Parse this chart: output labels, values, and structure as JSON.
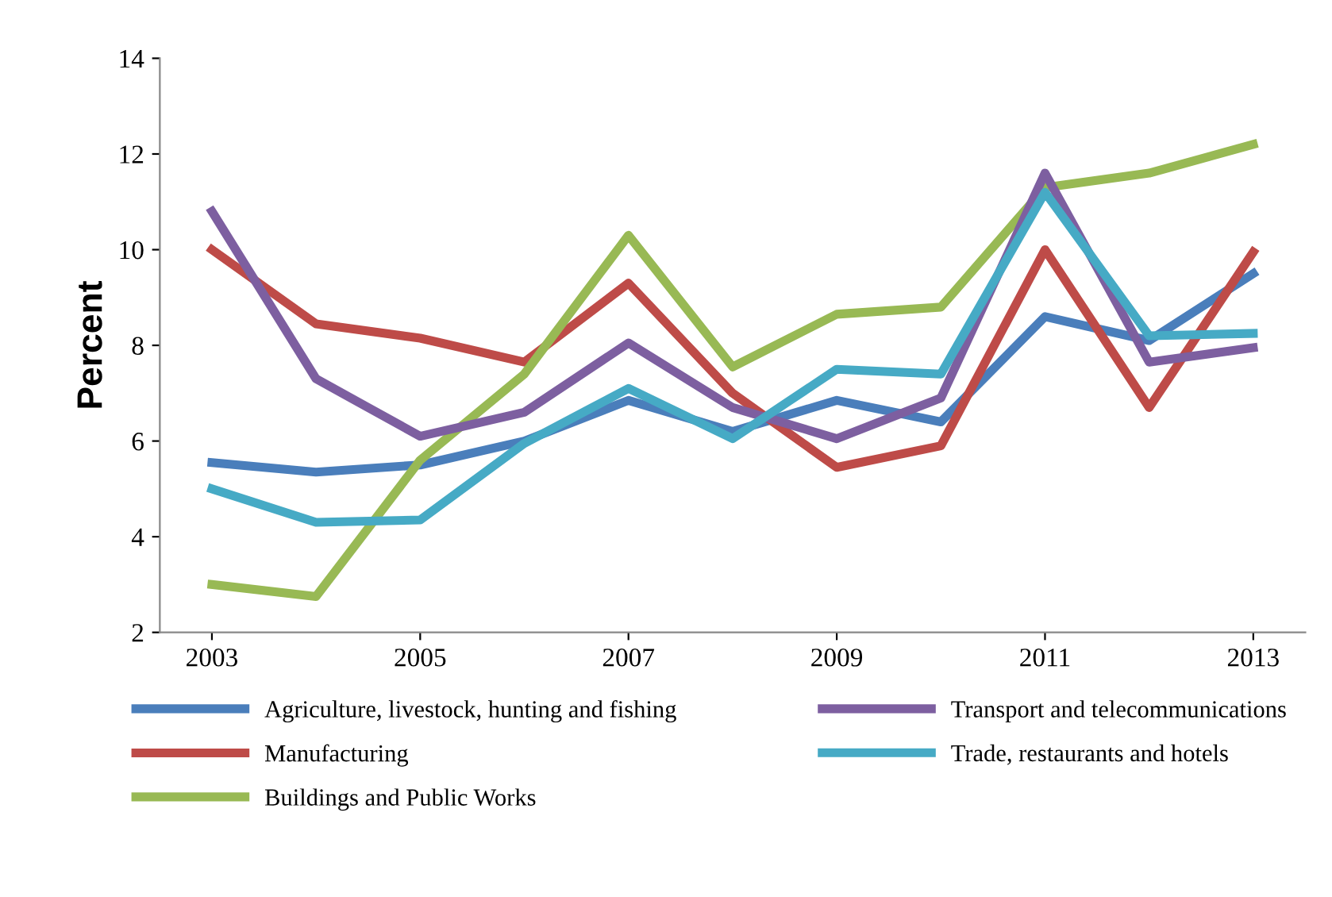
{
  "chart_data": {
    "type": "line",
    "ylabel": "Percent",
    "x": [
      2003,
      2004,
      2005,
      2006,
      2007,
      2008,
      2009,
      2010,
      2011,
      2012,
      2013
    ],
    "xlim": [
      2002.5,
      2013.5
    ],
    "xticks": [
      2003,
      2005,
      2007,
      2009,
      2011,
      2013
    ],
    "ylim": [
      2,
      14
    ],
    "yticks": [
      2,
      4,
      6,
      8,
      10,
      12,
      14
    ],
    "grid": false,
    "legend": "bottom",
    "marker": "none",
    "line_style": "solid",
    "series": [
      {
        "name": "Agriculture, livestock, hunting and fishing",
        "color": "#4a7ebb",
        "values": [
          5.55,
          5.35,
          5.5,
          6.0,
          6.85,
          6.2,
          6.85,
          6.4,
          8.6,
          8.1,
          9.5
        ]
      },
      {
        "name": "Manufacturing",
        "color": "#be4b48",
        "values": [
          10.0,
          8.45,
          8.15,
          7.65,
          9.3,
          7.0,
          5.45,
          5.9,
          10.0,
          6.7,
          9.95
        ]
      },
      {
        "name": "Buildings and Public Works",
        "color": "#98b954",
        "values": [
          3.0,
          2.75,
          5.6,
          7.4,
          10.3,
          7.55,
          8.65,
          8.8,
          11.3,
          11.6,
          12.2
        ]
      },
      {
        "name": "Transport and telecommunications",
        "color": "#7d5fa0",
        "values": [
          10.8,
          7.3,
          6.1,
          6.6,
          8.05,
          6.7,
          6.05,
          6.9,
          11.6,
          7.65,
          7.95
        ]
      },
      {
        "name": "Trade, restaurants and hotels",
        "color": "#46aac5",
        "values": [
          5.0,
          4.3,
          4.35,
          5.95,
          7.1,
          6.05,
          7.5,
          7.4,
          11.2,
          8.2,
          8.25
        ]
      }
    ]
  }
}
